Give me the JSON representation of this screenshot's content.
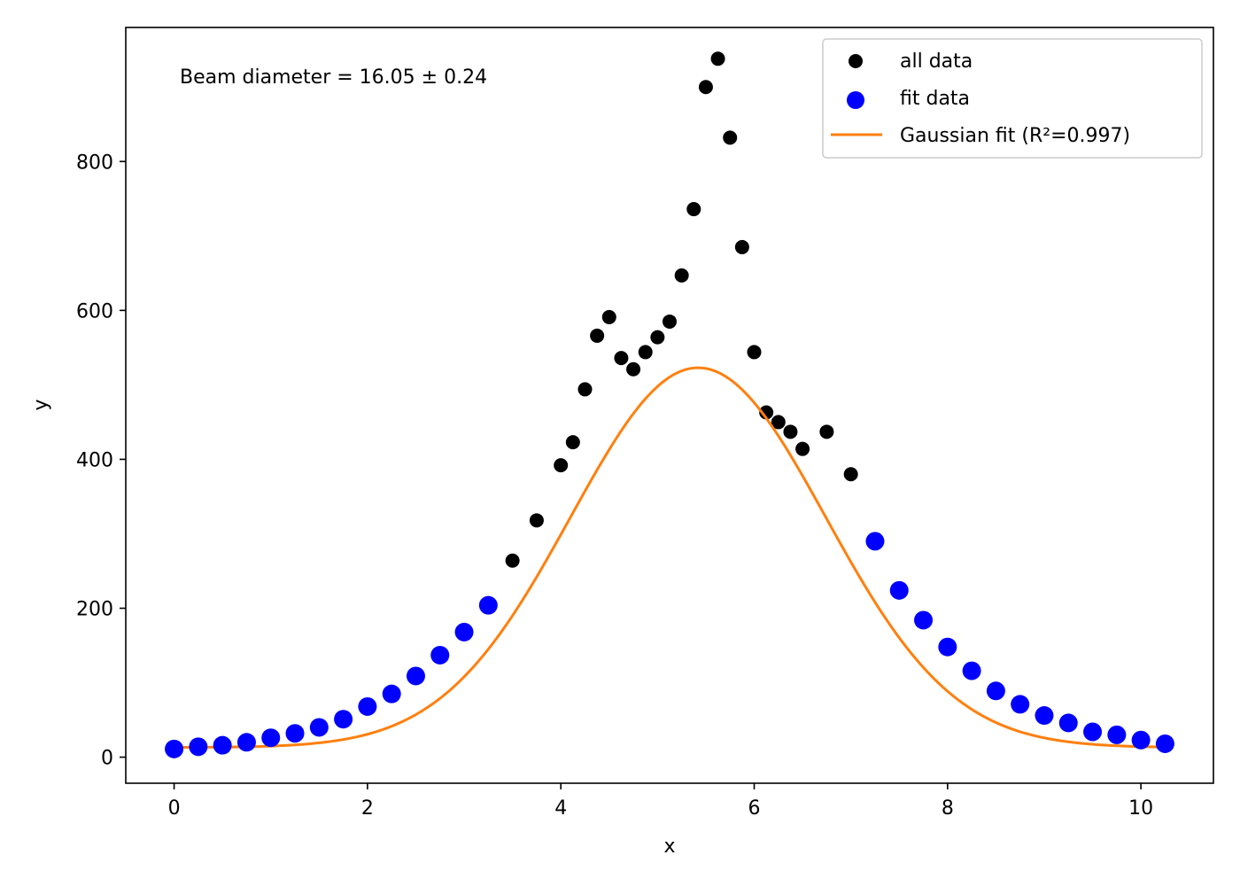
{
  "chart_data": {
    "type": "scatter",
    "xlabel": "x",
    "ylabel": "y",
    "xlim": [
      -0.5,
      10.75
    ],
    "ylim": [
      -35,
      980
    ],
    "xticks": [
      0,
      2,
      4,
      6,
      8,
      10
    ],
    "yticks": [
      0,
      200,
      400,
      600,
      800
    ],
    "xtick_labels": [
      "0",
      "2",
      "4",
      "6",
      "8",
      "10"
    ],
    "ytick_labels": [
      "0",
      "200",
      "400",
      "600",
      "800"
    ],
    "annotation": "Beam diameter = 16.05 ± 0.24",
    "legend_position": "top-right",
    "grid": false,
    "series": [
      {
        "name": "all data",
        "kind": "scatter",
        "color": "#000000",
        "x": [
          3.5,
          3.75,
          4.0,
          4.125,
          4.25,
          4.375,
          4.5,
          4.625,
          4.75,
          4.875,
          5.0,
          5.125,
          5.25,
          5.375,
          5.5,
          5.625,
          5.75,
          5.875,
          6.0,
          6.125,
          6.25,
          6.375,
          6.5,
          6.75,
          7.0
        ],
        "y": [
          264,
          318,
          392,
          423,
          494,
          566,
          591,
          536,
          521,
          544,
          564,
          585,
          647,
          736,
          900,
          938,
          832,
          685,
          544,
          463,
          450,
          437,
          414,
          437,
          380
        ]
      },
      {
        "name": "fit data",
        "kind": "scatter",
        "color": "#0000ff",
        "x": [
          0,
          0.25,
          0.5,
          0.75,
          1.0,
          1.25,
          1.5,
          1.75,
          2.0,
          2.25,
          2.5,
          2.75,
          3.0,
          3.25,
          7.25,
          7.5,
          7.75,
          8.0,
          8.25,
          8.5,
          8.75,
          9.0,
          9.25,
          9.5,
          9.75,
          10.0,
          10.25
        ],
        "y": [
          11,
          14,
          16,
          20,
          26,
          32,
          40,
          51,
          68,
          85,
          109,
          137,
          168,
          204,
          290,
          224,
          184,
          148,
          116,
          89,
          71,
          56,
          46,
          34,
          30,
          23,
          18
        ]
      },
      {
        "name": "Gaussian fit (R²=0.997)",
        "kind": "line",
        "color": "#ff7f0e",
        "model": {
          "amplitude": 510,
          "center": 5.42,
          "sigma": 1.32,
          "offset": 13
        },
        "x_range": [
          0,
          10.25
        ]
      }
    ]
  }
}
